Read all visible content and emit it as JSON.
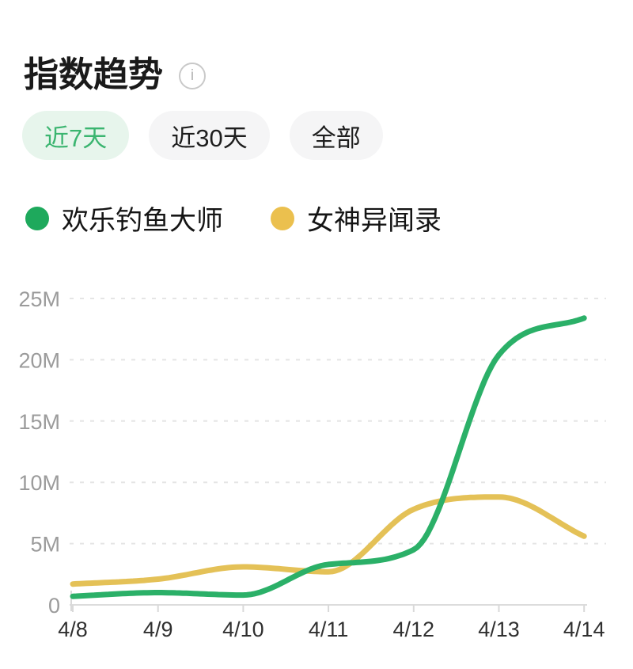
{
  "header": {
    "title": "指数趋势",
    "info_icon": "i"
  },
  "tabs": [
    {
      "label": "近7天",
      "active": true
    },
    {
      "label": "近30天",
      "active": false
    },
    {
      "label": "全部",
      "active": false
    }
  ],
  "legend": [
    {
      "label": "欢乐钓鱼大师",
      "color": "#1ea95c"
    },
    {
      "label": "女神异闻录",
      "color": "#ebc04e"
    }
  ],
  "colors": {
    "accent_green": "#2bb068",
    "accent_yellow": "#e4c157",
    "tab_active_bg": "#e7f5ec",
    "tab_active_text": "#3bb570",
    "tab_inactive_bg": "#f5f5f6",
    "axis_label": "#9b9b9b",
    "x_label": "#303030",
    "grid": "#e5e5e5",
    "axis_line": "#dcdcdc",
    "tick": "#d9d9d9"
  },
  "chart_data": {
    "type": "line",
    "title": "指数趋势",
    "categories": [
      "4/8",
      "4/9",
      "4/10",
      "4/11",
      "4/12",
      "4/13",
      "4/14"
    ],
    "series": [
      {
        "name": "欢乐钓鱼大师",
        "color": "#2bb068",
        "values_millions": [
          0.7,
          1.0,
          0.8,
          3.3,
          4.5,
          20.4,
          23.4
        ]
      },
      {
        "name": "女神异闻录",
        "color": "#e4c157",
        "values_millions": [
          1.7,
          2.1,
          3.1,
          2.7,
          7.8,
          8.8,
          5.6
        ]
      }
    ],
    "y_ticks": [
      "0",
      "5M",
      "10M",
      "15M",
      "20M",
      "25M"
    ],
    "ylim_millions": [
      0,
      25
    ],
    "xlabel": "",
    "ylabel": "",
    "grid": "horizontal-dashed",
    "legend_position": "top-left",
    "curve": "smooth-monotone"
  }
}
